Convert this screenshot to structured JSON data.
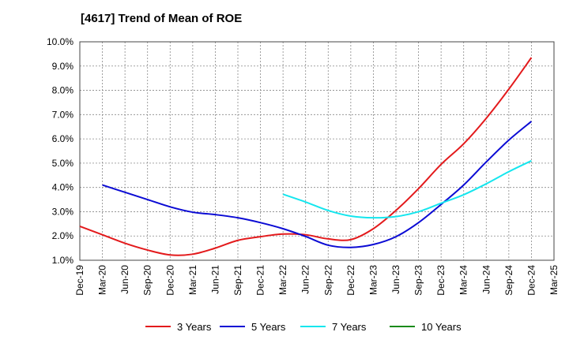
{
  "chart_data": {
    "type": "line",
    "title": "[4617]  Trend of Mean of ROE",
    "xlabel": "",
    "ylabel": "",
    "ylim": [
      1.0,
      10.0
    ],
    "y_ticks": [
      "1.0%",
      "2.0%",
      "3.0%",
      "4.0%",
      "5.0%",
      "6.0%",
      "7.0%",
      "8.0%",
      "9.0%",
      "10.0%"
    ],
    "x_ticks": [
      "Dec-19",
      "Mar-20",
      "Jun-20",
      "Sep-20",
      "Dec-20",
      "Mar-21",
      "Jun-21",
      "Sep-21",
      "Dec-21",
      "Mar-22",
      "Jun-22",
      "Sep-22",
      "Dec-22",
      "Mar-23",
      "Jun-23",
      "Sep-23",
      "Dec-23",
      "Mar-24",
      "Jun-24",
      "Sep-24",
      "Dec-24",
      "Mar-25"
    ],
    "grid": true,
    "legend_position": "bottom",
    "series": [
      {
        "name": "3 Years",
        "color": "#e31a1c",
        "values": [
          2.4,
          2.05,
          1.7,
          1.42,
          1.22,
          1.25,
          1.5,
          1.82,
          1.97,
          2.08,
          2.05,
          1.88,
          1.85,
          2.3,
          3.05,
          3.95,
          4.95,
          5.8,
          6.85,
          8.05,
          9.35,
          null
        ]
      },
      {
        "name": "5 Years",
        "color": "#0b0bd4",
        "values": [
          null,
          4.1,
          3.8,
          3.5,
          3.2,
          2.98,
          2.88,
          2.75,
          2.55,
          2.3,
          1.98,
          1.62,
          1.53,
          1.65,
          1.97,
          2.55,
          3.3,
          4.1,
          5.05,
          5.95,
          6.72,
          null
        ]
      },
      {
        "name": "7 Years",
        "color": "#15e6ee",
        "values": [
          null,
          null,
          null,
          null,
          null,
          null,
          null,
          null,
          null,
          3.72,
          3.4,
          3.05,
          2.82,
          2.75,
          2.8,
          3.0,
          3.35,
          3.7,
          4.15,
          4.65,
          5.1,
          null
        ]
      },
      {
        "name": "10 Years",
        "color": "#1a8a1a",
        "values": [
          null,
          null,
          null,
          null,
          null,
          null,
          null,
          null,
          null,
          null,
          null,
          null,
          null,
          null,
          null,
          null,
          null,
          null,
          null,
          null,
          null,
          null
        ]
      }
    ]
  }
}
